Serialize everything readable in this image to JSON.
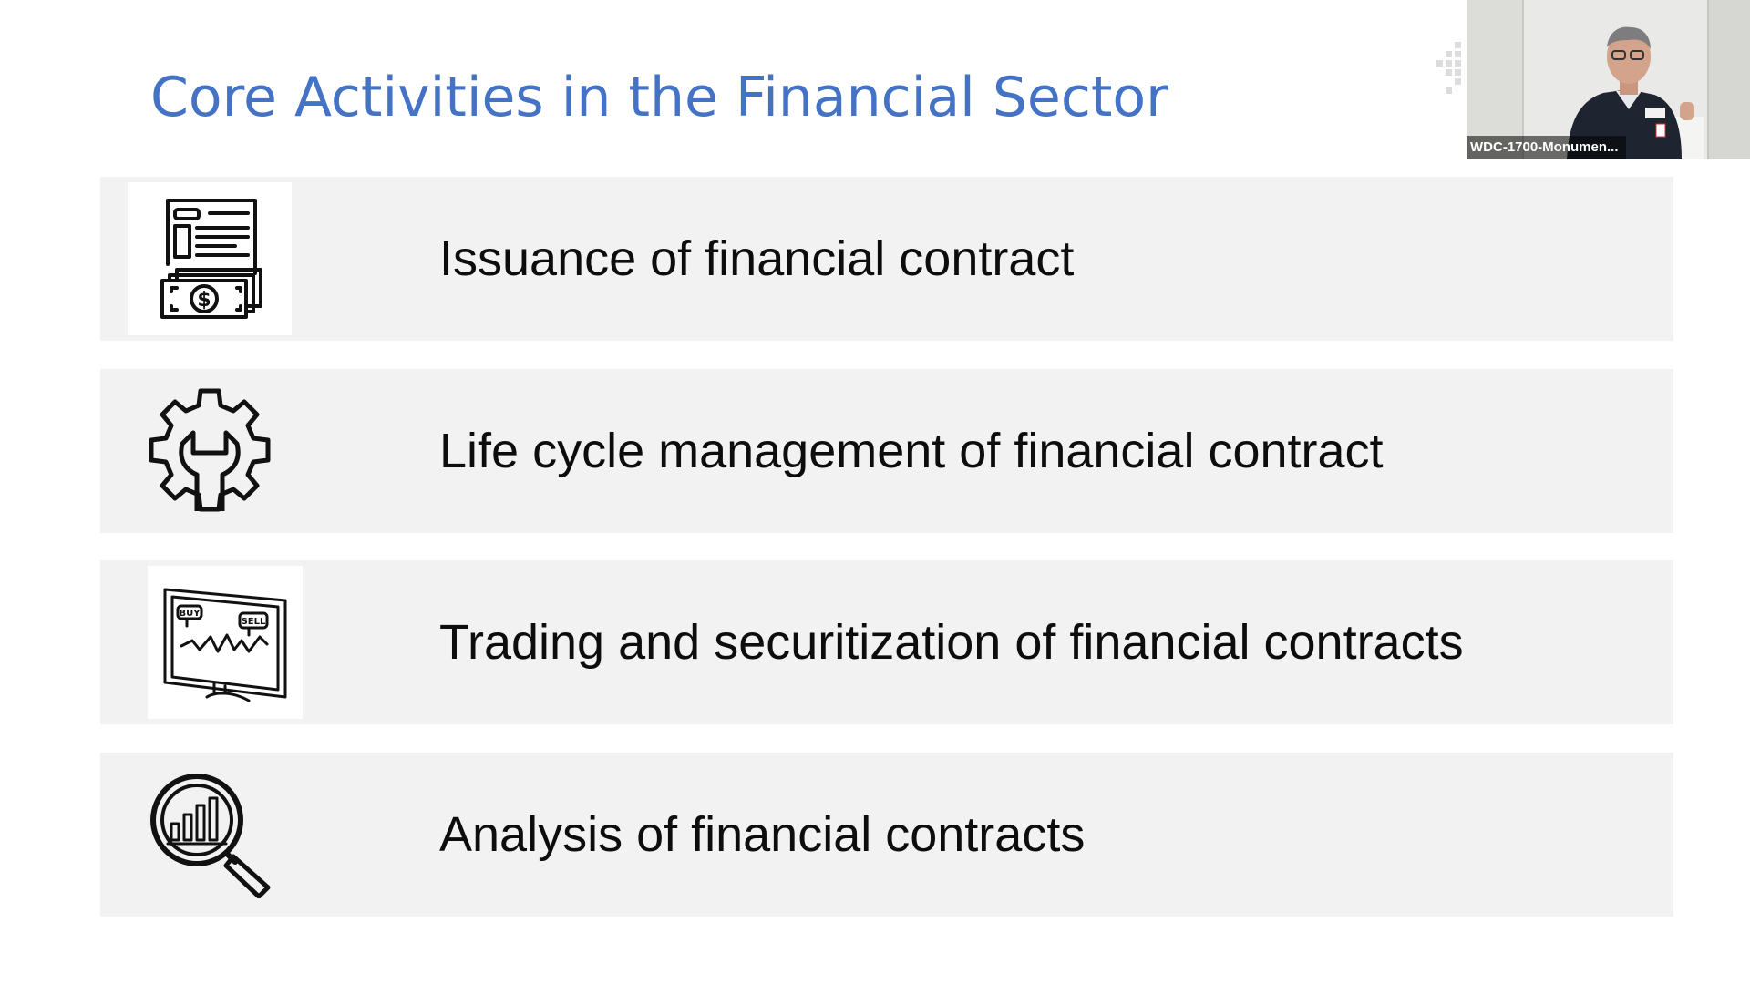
{
  "slide": {
    "title": "Core Activities in the Financial Sector",
    "title_color": "#4472c4",
    "rows": [
      {
        "label": "Issuance of financial contract",
        "icon": "contract-money-icon"
      },
      {
        "label": "Life cycle management of financial contract",
        "icon": "gear-wrench-icon"
      },
      {
        "label": "Trading and securitization of financial contracts",
        "icon": "trading-monitor-icon",
        "icon_text": {
          "buy": "BUY",
          "sell": "SELL"
        }
      },
      {
        "label": "Analysis of financial contracts",
        "icon": "magnifier-chart-icon"
      }
    ]
  },
  "video": {
    "participant_name": "WDC-1700-Monumen..."
  }
}
